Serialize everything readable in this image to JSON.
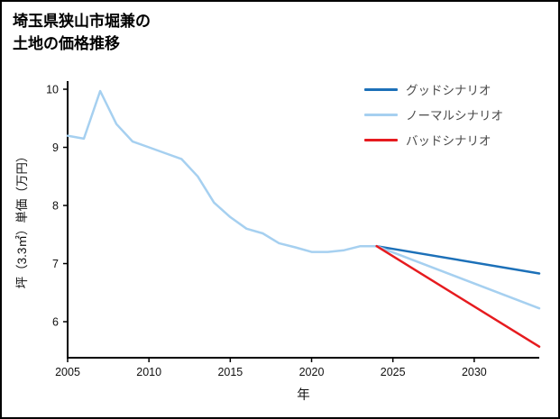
{
  "title": {
    "line1": "埼玉県狭山市堀兼の",
    "line2": "土地の価格推移"
  },
  "chart_data": {
    "type": "line",
    "title": "埼玉県狭山市堀兼の土地の価格推移",
    "xlabel": "年",
    "ylabel": "坪（3.3㎡）単価（万円）",
    "xlim": [
      2005,
      2034
    ],
    "ylim": [
      5.38,
      10.14
    ],
    "xticks": [
      2005,
      2010,
      2015,
      2020,
      2025,
      2030
    ],
    "yticks": [
      6,
      7,
      8,
      9,
      10
    ],
    "grid": false,
    "legend_position": "upper right",
    "axis_color": "#000000",
    "series": [
      {
        "id": "history",
        "color": "#a6d0f0",
        "x": [
          2005,
          2006,
          2007,
          2008,
          2009,
          2010,
          2011,
          2012,
          2013,
          2014,
          2015,
          2016,
          2017,
          2018,
          2019,
          2020,
          2021,
          2022,
          2023,
          2024
        ],
        "y": [
          9.2,
          9.15,
          9.97,
          9.4,
          9.1,
          9.0,
          8.9,
          8.8,
          8.5,
          8.05,
          7.8,
          7.6,
          7.52,
          7.35,
          7.28,
          7.2,
          7.2,
          7.23,
          7.3,
          7.3
        ]
      },
      {
        "id": "good",
        "color": "#1c70b8",
        "x": [
          2024,
          2034
        ],
        "y": [
          7.3,
          6.83
        ]
      },
      {
        "id": "normal",
        "color": "#a6d0f0",
        "x": [
          2024,
          2034
        ],
        "y": [
          7.3,
          6.23
        ]
      },
      {
        "id": "bad",
        "color": "#e61b1f",
        "x": [
          2024,
          2034
        ],
        "y": [
          7.3,
          5.57
        ]
      }
    ],
    "legend": [
      {
        "label": "グッドシナリオ",
        "color": "#1c70b8",
        "series": "good"
      },
      {
        "label": "ノーマルシナリオ",
        "color": "#a6d0f0",
        "series": "normal"
      },
      {
        "label": "バッドシナリオ",
        "color": "#e61b1f",
        "series": "bad"
      }
    ]
  }
}
